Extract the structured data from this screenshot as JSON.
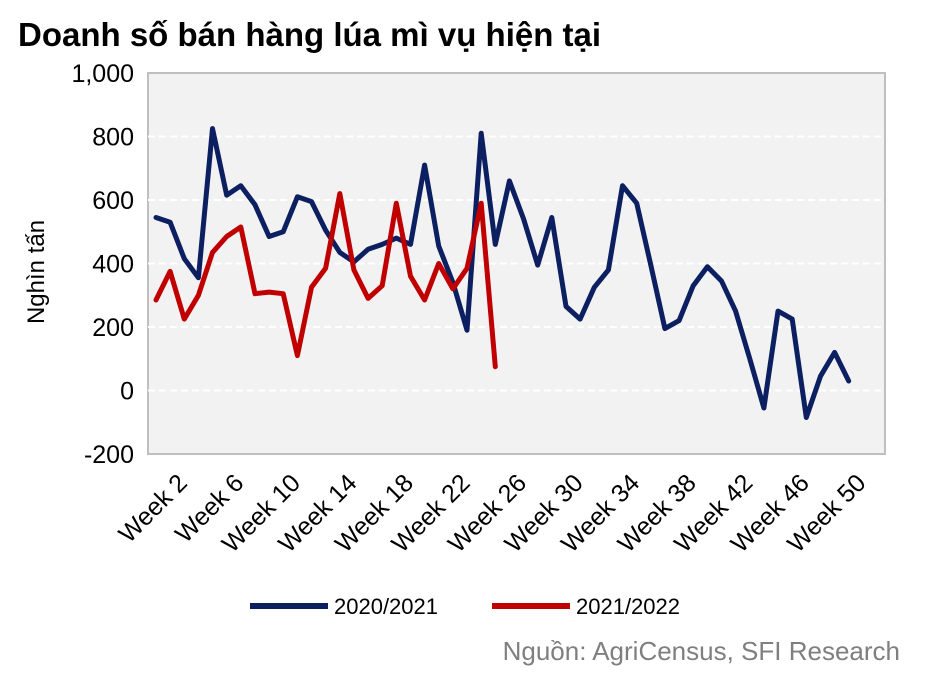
{
  "chart_data": {
    "type": "line",
    "title": "Doanh số bán hàng lúa mì vụ hiện tại",
    "xlabel": "",
    "ylabel": "Nghìn tấn",
    "ylim": [
      -200,
      1000
    ],
    "yticks": [
      "1,000",
      "800",
      "600",
      "400",
      "200",
      "0",
      "-200"
    ],
    "ytick_values": [
      1000,
      800,
      600,
      400,
      200,
      0,
      -200
    ],
    "x": [
      1,
      2,
      3,
      4,
      5,
      6,
      7,
      8,
      9,
      10,
      11,
      12,
      13,
      14,
      15,
      16,
      17,
      18,
      19,
      20,
      21,
      22,
      23,
      24,
      25,
      26,
      27,
      28,
      29,
      30,
      31,
      32,
      33,
      34,
      35,
      36,
      37,
      38,
      39,
      40,
      41,
      42,
      43,
      44,
      45,
      46,
      47,
      48,
      49,
      50,
      51,
      52
    ],
    "xticks": [
      "Week 2",
      "Week 6",
      "Week 10",
      "Week 14",
      "Week 18",
      "Week 22",
      "Week 26",
      "Week 30",
      "Week 34",
      "Week 38",
      "Week 42",
      "Week 46",
      "Week 50"
    ],
    "xtick_values": [
      2,
      6,
      10,
      14,
      18,
      22,
      26,
      30,
      34,
      38,
      42,
      46,
      50
    ],
    "grid": true,
    "legend_position": "bottom",
    "series": [
      {
        "name": "2020/2021",
        "color": "#0c1f60",
        "values": [
          545,
          530,
          415,
          355,
          825,
          615,
          645,
          585,
          485,
          500,
          610,
          595,
          505,
          435,
          405,
          445,
          460,
          480,
          460,
          710,
          455,
          340,
          190,
          810,
          460,
          660,
          540,
          395,
          545,
          265,
          225,
          325,
          380,
          645,
          590,
          395,
          195,
          220,
          330,
          390,
          345,
          250,
          100,
          -55,
          250,
          225,
          -85,
          45,
          120,
          30,
          null,
          null
        ]
      },
      {
        "name": "2021/2022",
        "color": "#c00000",
        "values": [
          285,
          375,
          225,
          300,
          435,
          485,
          515,
          305,
          310,
          305,
          110,
          325,
          385,
          620,
          380,
          290,
          330,
          590,
          360,
          285,
          400,
          320,
          385,
          590,
          75,
          null,
          null,
          null,
          null,
          null,
          null,
          null,
          null,
          null,
          null,
          null,
          null,
          null,
          null,
          null,
          null,
          null,
          null,
          null,
          null,
          null,
          null,
          null,
          null,
          null,
          null,
          null
        ]
      }
    ]
  },
  "source": "Nguồn: AgriCensus, SFI Research",
  "colors": {
    "plot_background": "#f2f2f2",
    "gridline": "#ffffff",
    "axis": "#bfbfbf"
  }
}
